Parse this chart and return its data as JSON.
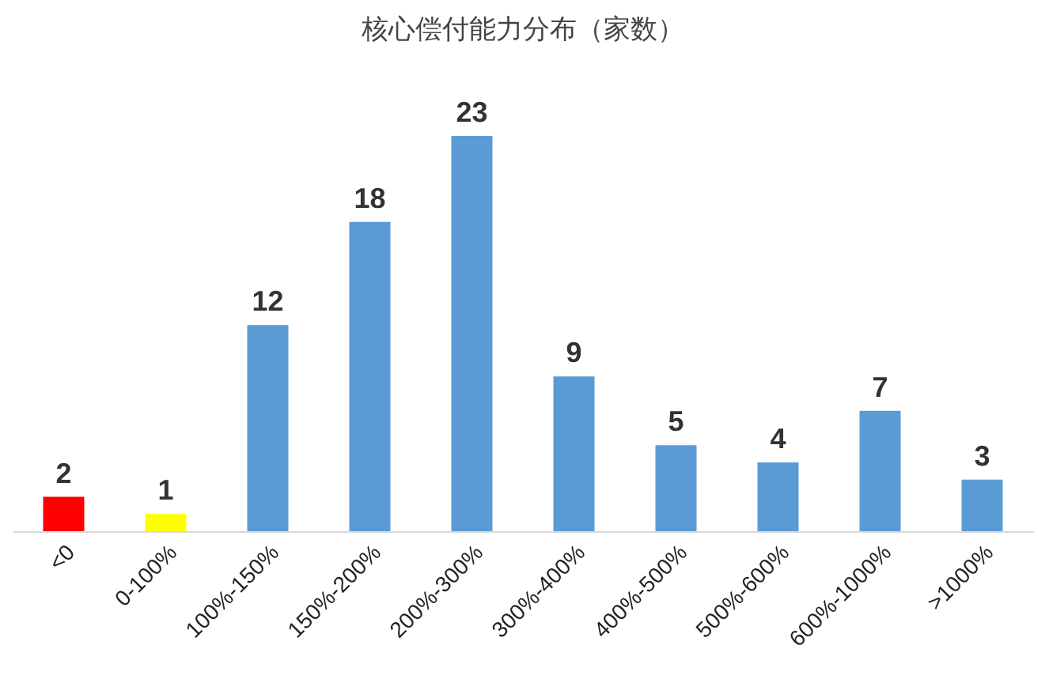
{
  "chart_data": {
    "type": "bar",
    "title": "核心偿付能力分布（家数）",
    "categories": [
      "<0",
      "0-100%",
      "100%-150%",
      "150%-200%",
      "200%-300%",
      "300%-400%",
      "400%-500%",
      "500%-600%",
      "600%-1000%",
      ">1000%"
    ],
    "values": [
      2,
      1,
      12,
      18,
      23,
      9,
      5,
      4,
      7,
      3
    ],
    "colors": [
      "#ff0000",
      "#ffff00",
      "#5b9bd5",
      "#5b9bd5",
      "#5b9bd5",
      "#5b9bd5",
      "#5b9bd5",
      "#5b9bd5",
      "#5b9bd5",
      "#5b9bd5"
    ],
    "data_labels": true
  }
}
